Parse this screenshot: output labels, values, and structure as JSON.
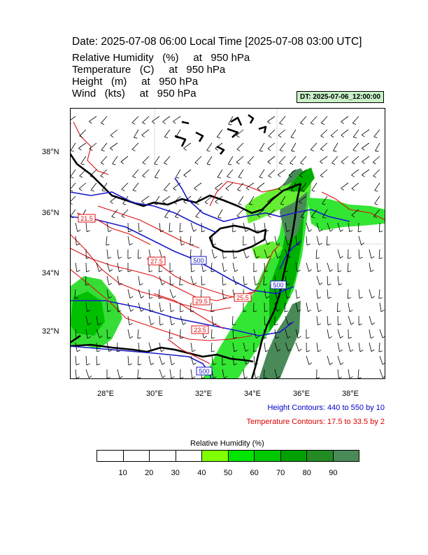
{
  "header": {
    "title": "Date: 2025-07-08  06:00 Local Time [2025-07-08  03:00 UTC]",
    "fields": [
      "Relative Humidity   (%)     at   950 hPa",
      "Temperature   (C)     at   950 hPa",
      "Height   (m)     at   950 hPa",
      "Wind   (kts)     at   950 hPa"
    ],
    "init_badge": "DT: 2025-07-06_12:00:00"
  },
  "map": {
    "lat_labels": [
      "38°N",
      "36°N",
      "34°N",
      "32°N"
    ],
    "lon_labels": [
      "28°E",
      "30°E",
      "32°E",
      "34°E",
      "36°E",
      "38°E"
    ],
    "height_contour_labels": [
      "500",
      "500",
      "500"
    ],
    "temperature_contour_labels": [
      "21.5",
      "27.5",
      "29.5",
      "25.5",
      "23.5"
    ],
    "colors": {
      "land_outline": "#000000",
      "height_contour": "#1a1acc",
      "temperature_contour": "#dd1111",
      "wind_barb": "#000000"
    }
  },
  "notes": {
    "height": "Height Contours: 440 to 550 by 10",
    "temperature": "Temperature Contours: 17.5 to 33.5 by 2"
  },
  "colorbar": {
    "title": "Relative Humidity  (%)",
    "ticks": [
      "10",
      "20",
      "30",
      "40",
      "50",
      "60",
      "70",
      "80",
      "90"
    ],
    "colors": [
      "#ffffff",
      "#ffffff",
      "#ffffff",
      "#ffffff",
      "#80ff00",
      "#00e600",
      "#00c800",
      "#00a000",
      "#238b23",
      "#4a8a58"
    ]
  }
}
